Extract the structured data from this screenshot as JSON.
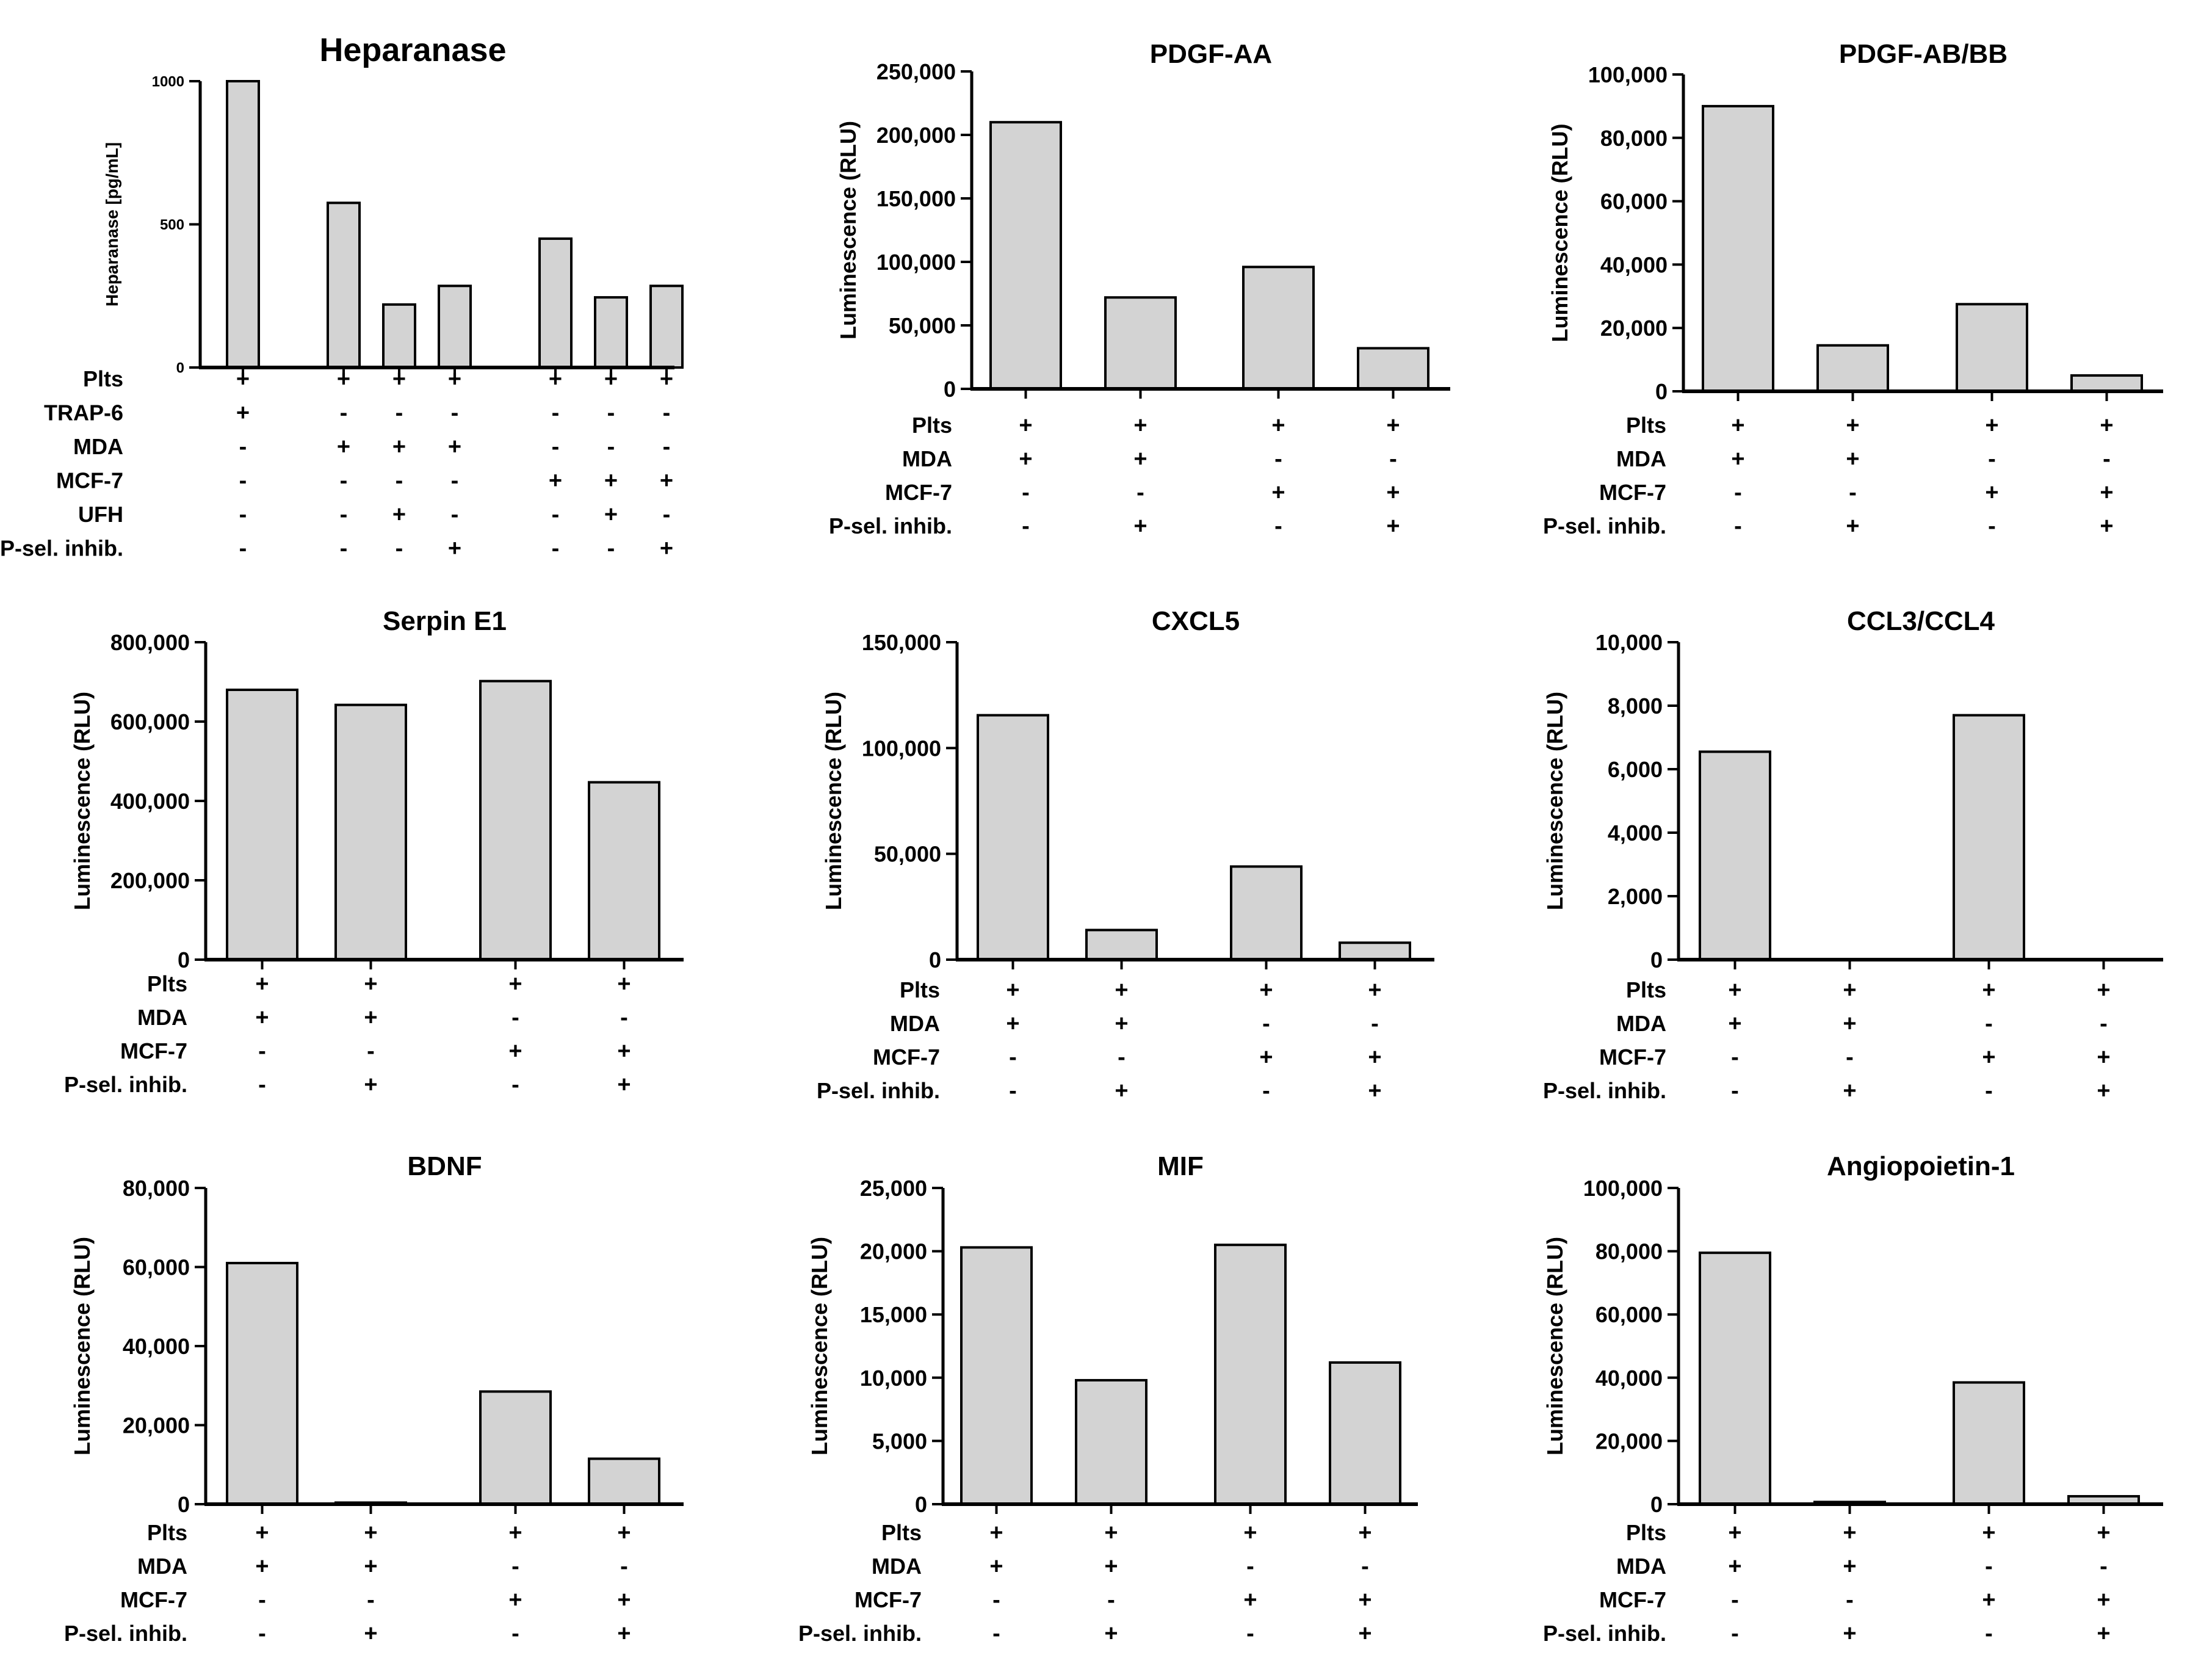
{
  "colors": {
    "bar_fill": "#d3d3d3",
    "axis": "#000000",
    "background": "#ffffff"
  },
  "chart_data": [
    {
      "type": "bar",
      "title": "Heparanase",
      "ylabel": "Heparanase [pg/mL]",
      "ylim": [
        0,
        1000
      ],
      "yticks": [
        "0",
        "500",
        "1000"
      ],
      "groups": [
        [
          0
        ],
        [
          1,
          2,
          3
        ],
        [
          4,
          5,
          6
        ]
      ],
      "values": [
        1000,
        575,
        220,
        285,
        450,
        245,
        285
      ],
      "condition_rows": [
        {
          "label": "Plts",
          "signs": [
            "+",
            "+",
            "+",
            "+",
            "+",
            "+",
            "+"
          ]
        },
        {
          "label": "TRAP-6",
          "signs": [
            "+",
            "-",
            "-",
            "-",
            "-",
            "-",
            "-"
          ]
        },
        {
          "label": "MDA",
          "signs": [
            "-",
            "+",
            "+",
            "+",
            "-",
            "-",
            "-"
          ]
        },
        {
          "label": "MCF-7",
          "signs": [
            "-",
            "-",
            "-",
            "-",
            "+",
            "+",
            "+"
          ]
        },
        {
          "label": "UFH",
          "signs": [
            "-",
            "-",
            "+",
            "-",
            "-",
            "+",
            "-"
          ]
        },
        {
          "label": "P-sel. inhib.",
          "signs": [
            "-",
            "-",
            "-",
            "+",
            "-",
            "-",
            "+"
          ]
        }
      ]
    },
    {
      "type": "bar",
      "title": "PDGF-AA",
      "ylabel": "Luminescence (RLU)",
      "ylim": [
        0,
        250000
      ],
      "yticks": [
        "0",
        "50,000",
        "100,000",
        "150,000",
        "200,000",
        "250,000"
      ],
      "groups": [
        [
          0,
          1
        ],
        [
          2,
          3
        ]
      ],
      "values": [
        210000,
        72000,
        96000,
        32000
      ],
      "condition_rows": [
        {
          "label": "Plts",
          "signs": [
            "+",
            "+",
            "+",
            "+"
          ]
        },
        {
          "label": "MDA",
          "signs": [
            "+",
            "+",
            "-",
            "-"
          ]
        },
        {
          "label": "MCF-7",
          "signs": [
            "-",
            "-",
            "+",
            "+"
          ]
        },
        {
          "label": "P-sel. inhib.",
          "signs": [
            "-",
            "+",
            "-",
            "+"
          ]
        }
      ]
    },
    {
      "type": "bar",
      "title": "PDGF-AB/BB",
      "ylabel": "Luminescence (RLU)",
      "ylim": [
        0,
        100000
      ],
      "yticks": [
        "0",
        "20,000",
        "40,000",
        "60,000",
        "80,000",
        "100,000"
      ],
      "groups": [
        [
          0,
          1
        ],
        [
          2,
          3
        ]
      ],
      "values": [
        90000,
        14500,
        27500,
        5000
      ],
      "condition_rows": [
        {
          "label": "Plts",
          "signs": [
            "+",
            "+",
            "+",
            "+"
          ]
        },
        {
          "label": "MDA",
          "signs": [
            "+",
            "+",
            "-",
            "-"
          ]
        },
        {
          "label": "MCF-7",
          "signs": [
            "-",
            "-",
            "+",
            "+"
          ]
        },
        {
          "label": "P-sel. inhib.",
          "signs": [
            "-",
            "+",
            "-",
            "+"
          ]
        }
      ]
    },
    {
      "type": "bar",
      "title": "Serpin E1",
      "ylabel": "Luminescence (RLU)",
      "ylim": [
        0,
        800000
      ],
      "yticks": [
        "0",
        "200,000",
        "400,000",
        "600,000",
        "800,000"
      ],
      "groups": [
        [
          0,
          1
        ],
        [
          2,
          3
        ]
      ],
      "values": [
        680000,
        642000,
        702000,
        447000
      ],
      "condition_rows": [
        {
          "label": "Plts",
          "signs": [
            "+",
            "+",
            "+",
            "+"
          ]
        },
        {
          "label": "MDA",
          "signs": [
            "+",
            "+",
            "-",
            "-"
          ]
        },
        {
          "label": "MCF-7",
          "signs": [
            "-",
            "-",
            "+",
            "+"
          ]
        },
        {
          "label": "P-sel. inhib.",
          "signs": [
            "-",
            "+",
            "-",
            "+"
          ]
        }
      ]
    },
    {
      "type": "bar",
      "title": "CXCL5",
      "ylabel": "Luminescence (RLU)",
      "ylim": [
        0,
        150000
      ],
      "yticks": [
        "0",
        "50,000",
        "100,000",
        "150,000"
      ],
      "groups": [
        [
          0,
          1
        ],
        [
          2,
          3
        ]
      ],
      "values": [
        115500,
        14000,
        44000,
        8000
      ],
      "condition_rows": [
        {
          "label": "Plts",
          "signs": [
            "+",
            "+",
            "+",
            "+"
          ]
        },
        {
          "label": "MDA",
          "signs": [
            "+",
            "+",
            "-",
            "-"
          ]
        },
        {
          "label": "MCF-7",
          "signs": [
            "-",
            "-",
            "+",
            "+"
          ]
        },
        {
          "label": "P-sel. inhib.",
          "signs": [
            "-",
            "+",
            "-",
            "+"
          ]
        }
      ]
    },
    {
      "type": "bar",
      "title": "CCL3/CCL4",
      "ylabel": "Luminescence (RLU)",
      "ylim": [
        0,
        10000
      ],
      "yticks": [
        "0",
        "2,000",
        "4,000",
        "6,000",
        "8,000",
        "10,000"
      ],
      "groups": [
        [
          0,
          1
        ],
        [
          2,
          3
        ]
      ],
      "values": [
        6550,
        0,
        7700,
        0
      ],
      "condition_rows": [
        {
          "label": "Plts",
          "signs": [
            "+",
            "+",
            "+",
            "+"
          ]
        },
        {
          "label": "MDA",
          "signs": [
            "+",
            "+",
            "-",
            "-"
          ]
        },
        {
          "label": "MCF-7",
          "signs": [
            "-",
            "-",
            "+",
            "+"
          ]
        },
        {
          "label": "P-sel. inhib.",
          "signs": [
            "-",
            "+",
            "-",
            "+"
          ]
        }
      ]
    },
    {
      "type": "bar",
      "title": "BDNF",
      "ylabel": "Luminescence (RLU)",
      "ylim": [
        0,
        80000
      ],
      "yticks": [
        "0",
        "20,000",
        "40,000",
        "60,000",
        "80,000"
      ],
      "groups": [
        [
          0,
          1
        ],
        [
          2,
          3
        ]
      ],
      "values": [
        61000,
        400,
        28500,
        11500
      ],
      "condition_rows": [
        {
          "label": "Plts",
          "signs": [
            "+",
            "+",
            "+",
            "+"
          ]
        },
        {
          "label": "MDA",
          "signs": [
            "+",
            "+",
            "-",
            "-"
          ]
        },
        {
          "label": "MCF-7",
          "signs": [
            "-",
            "-",
            "+",
            "+"
          ]
        },
        {
          "label": "P-sel. inhib.",
          "signs": [
            "-",
            "+",
            "-",
            "+"
          ]
        }
      ]
    },
    {
      "type": "bar",
      "title": "MIF",
      "ylabel": "Luminescence (RLU)",
      "ylim": [
        0,
        25000
      ],
      "yticks": [
        "0",
        "5,000",
        "10,000",
        "15,000",
        "20,000",
        "25,000"
      ],
      "groups": [
        [
          0,
          1
        ],
        [
          2,
          3
        ]
      ],
      "values": [
        20300,
        9800,
        20500,
        11200
      ],
      "condition_rows": [
        {
          "label": "Plts",
          "signs": [
            "+",
            "+",
            "+",
            "+"
          ]
        },
        {
          "label": "MDA",
          "signs": [
            "+",
            "+",
            "-",
            "-"
          ]
        },
        {
          "label": "MCF-7",
          "signs": [
            "-",
            "-",
            "+",
            "+"
          ]
        },
        {
          "label": "P-sel. inhib.",
          "signs": [
            "-",
            "+",
            "-",
            "+"
          ]
        }
      ]
    },
    {
      "type": "bar",
      "title": "Angiopoietin-1",
      "ylabel": "Luminescence (RLU)",
      "ylim": [
        0,
        100000
      ],
      "yticks": [
        "0",
        "20,000",
        "40,000",
        "60,000",
        "80,000",
        "100,000"
      ],
      "groups": [
        [
          0,
          1
        ],
        [
          2,
          3
        ]
      ],
      "values": [
        79500,
        700,
        38500,
        2500
      ],
      "condition_rows": [
        {
          "label": "Plts",
          "signs": [
            "+",
            "+",
            "+",
            "+"
          ]
        },
        {
          "label": "MDA",
          "signs": [
            "+",
            "+",
            "-",
            "-"
          ]
        },
        {
          "label": "MCF-7",
          "signs": [
            "-",
            "-",
            "+",
            "+"
          ]
        },
        {
          "label": "P-sel. inhib.",
          "signs": [
            "-",
            "+",
            "-",
            "+"
          ]
        }
      ]
    }
  ]
}
